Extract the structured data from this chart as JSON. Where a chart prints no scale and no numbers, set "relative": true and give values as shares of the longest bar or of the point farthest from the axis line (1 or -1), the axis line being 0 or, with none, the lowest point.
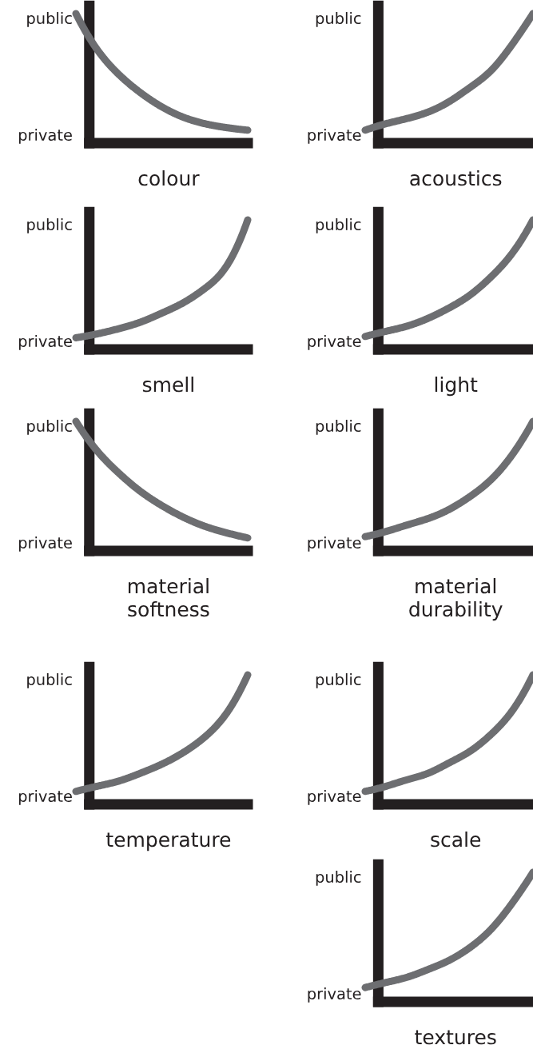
{
  "chart_data": [
    {
      "type": "line",
      "relative": true,
      "xlabel": "colour",
      "categories": [
        null,
        null,
        null,
        null,
        null,
        null,
        null,
        null,
        null
      ],
      "series": [
        {
          "color": "#6d6e71",
          "values": [
            1.0,
            0.72,
            0.53,
            0.39,
            0.28,
            0.2,
            0.15,
            0.12,
            0.1
          ]
        }
      ],
      "annotations": [
        "public",
        "private"
      ]
    },
    {
      "type": "line",
      "relative": true,
      "xlabel": "acoustics",
      "categories": [
        null,
        null,
        null,
        null,
        null,
        null,
        null,
        null,
        null
      ],
      "series": [
        {
          "color": "#6d6e71",
          "values": [
            0.1,
            0.15,
            0.19,
            0.24,
            0.32,
            0.43,
            0.56,
            0.76,
            1.0
          ]
        }
      ],
      "annotations": [
        "public",
        "private"
      ]
    },
    {
      "type": "line",
      "relative": true,
      "xlabel": "smell",
      "categories": [
        null,
        null,
        null,
        null,
        null,
        null,
        null,
        null,
        null
      ],
      "series": [
        {
          "color": "#6d6e71",
          "values": [
            0.09,
            0.12,
            0.16,
            0.21,
            0.28,
            0.36,
            0.47,
            0.64,
            1.0
          ]
        }
      ],
      "annotations": [
        "public",
        "private"
      ]
    },
    {
      "type": "line",
      "relative": true,
      "xlabel": "light",
      "categories": [
        null,
        null,
        null,
        null,
        null,
        null,
        null,
        null,
        null
      ],
      "series": [
        {
          "color": "#6d6e71",
          "values": [
            0.1,
            0.14,
            0.18,
            0.24,
            0.32,
            0.42,
            0.56,
            0.74,
            1.0
          ]
        }
      ],
      "annotations": [
        "public",
        "private"
      ]
    },
    {
      "type": "line",
      "relative": true,
      "xlabel": "material\nsoftness",
      "categories": [
        null,
        null,
        null,
        null,
        null,
        null,
        null,
        null,
        null
      ],
      "series": [
        {
          "color": "#6d6e71",
          "values": [
            1.0,
            0.77,
            0.6,
            0.46,
            0.35,
            0.26,
            0.19,
            0.14,
            0.1
          ]
        }
      ],
      "annotations": [
        "public",
        "private"
      ]
    },
    {
      "type": "line",
      "relative": true,
      "xlabel": "material\ndurability",
      "categories": [
        null,
        null,
        null,
        null,
        null,
        null,
        null,
        null,
        null
      ],
      "series": [
        {
          "color": "#6d6e71",
          "values": [
            0.11,
            0.15,
            0.2,
            0.25,
            0.32,
            0.42,
            0.55,
            0.74,
            1.0
          ]
        }
      ],
      "annotations": [
        "public",
        "private"
      ]
    },
    {
      "type": "line",
      "relative": true,
      "xlabel": "temperature",
      "categories": [
        null,
        null,
        null,
        null,
        null,
        null,
        null,
        null,
        null
      ],
      "series": [
        {
          "color": "#6d6e71",
          "values": [
            0.1,
            0.14,
            0.18,
            0.24,
            0.31,
            0.4,
            0.52,
            0.7,
            1.0
          ]
        }
      ],
      "annotations": [
        "public",
        "private"
      ]
    },
    {
      "type": "line",
      "relative": true,
      "xlabel": "scale",
      "categories": [
        null,
        null,
        null,
        null,
        null,
        null,
        null,
        null,
        null
      ],
      "series": [
        {
          "color": "#6d6e71",
          "values": [
            0.1,
            0.14,
            0.19,
            0.24,
            0.32,
            0.41,
            0.54,
            0.72,
            1.0
          ]
        }
      ],
      "annotations": [
        "public",
        "private"
      ]
    },
    {
      "type": "line",
      "relative": true,
      "xlabel": "textures",
      "categories": [
        null,
        null,
        null,
        null,
        null,
        null,
        null,
        null,
        null
      ],
      "series": [
        {
          "color": "#6d6e71",
          "values": [
            0.11,
            0.15,
            0.19,
            0.25,
            0.32,
            0.42,
            0.56,
            0.76,
            1.0
          ]
        }
      ],
      "annotations": [
        "public",
        "private"
      ]
    }
  ]
}
